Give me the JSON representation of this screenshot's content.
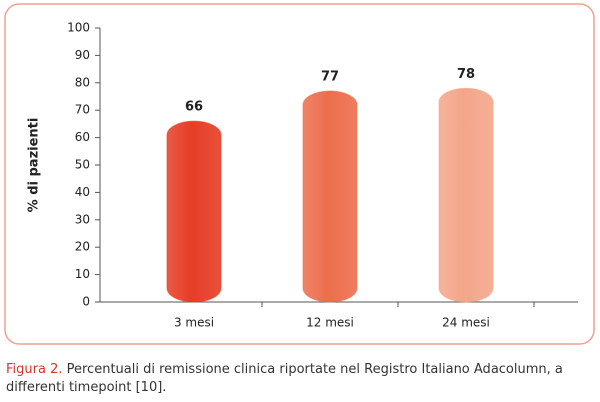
{
  "chart_data": {
    "type": "bar",
    "categories": [
      "3 mesi",
      "12 mesi",
      "24 mesi"
    ],
    "values": [
      66,
      77,
      78
    ],
    "colors": [
      "#e63d26",
      "#ec6e4c",
      "#f3a68a"
    ],
    "y_label": "% di pazienti",
    "ylim": [
      0,
      100
    ],
    "yticks": [
      0,
      10,
      20,
      30,
      40,
      50,
      60,
      70,
      80,
      90,
      100
    ]
  },
  "caption": {
    "label": "Figura 2.",
    "text": "Percentuali di remissione clinica riportate nel Registro Italiano Adacolumn, a differenti timepoint [10]."
  }
}
